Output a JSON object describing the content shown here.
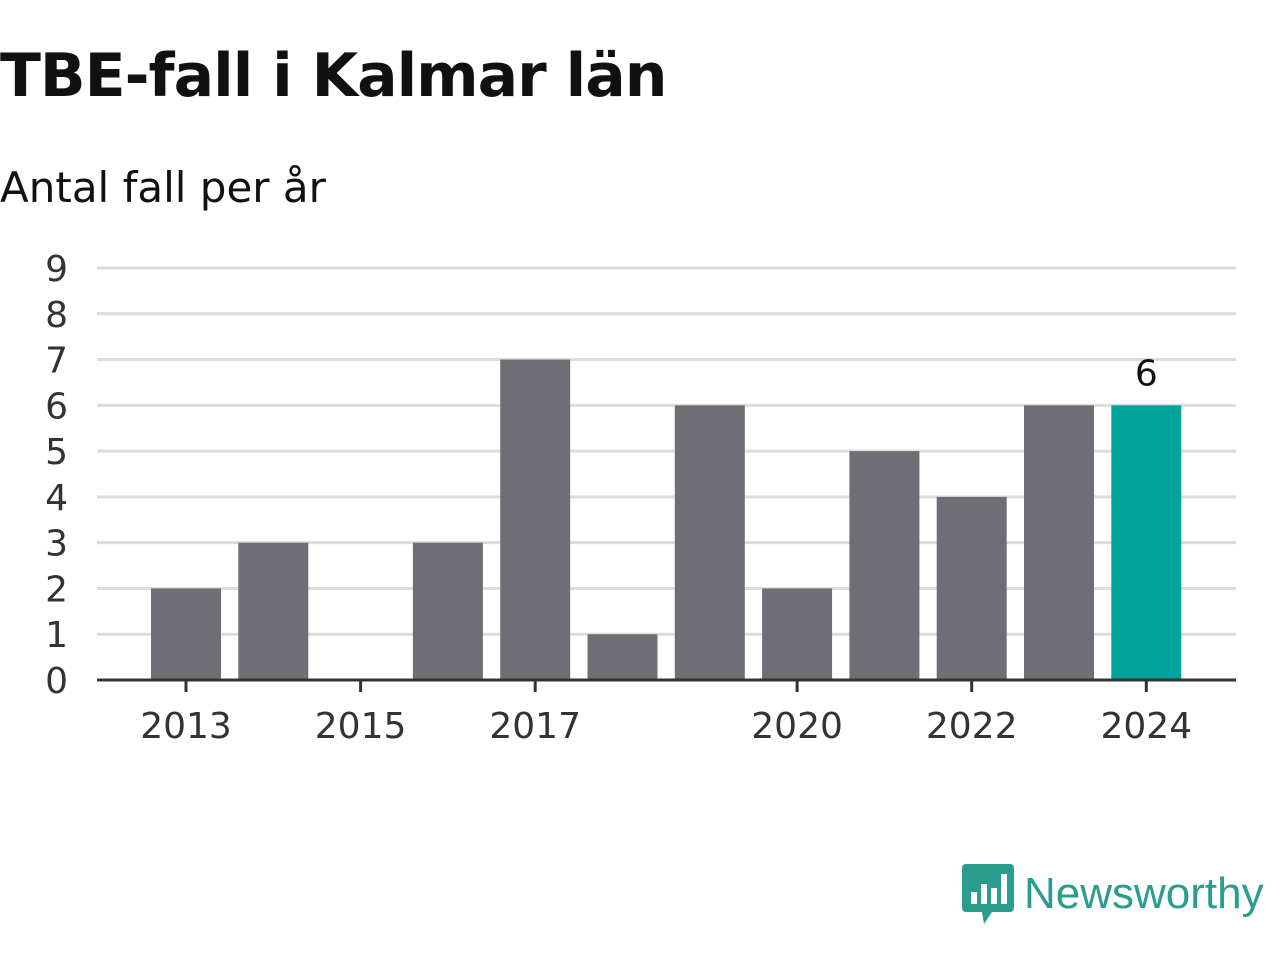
{
  "title": "TBE-fall i Kalmar län",
  "subtitle": "Antal fall per år",
  "logo": {
    "text": "Newsworthy",
    "icon": "newsworthy-chart-bubble-icon"
  },
  "colors": {
    "bar": "#6f6e74",
    "highlight": "#00a39a",
    "grid": "#dcdcdc",
    "axis": "#333333",
    "brand": "#2a9d8f"
  },
  "chart_data": {
    "type": "bar",
    "title": "TBE-fall i Kalmar län",
    "subtitle": "Antal fall per år",
    "xlabel": "",
    "ylabel": "",
    "categories": [
      "2013",
      "2014",
      "2015",
      "2016",
      "2017",
      "2018",
      "2019",
      "2020",
      "2021",
      "2022",
      "2023",
      "2024"
    ],
    "values": [
      2,
      3,
      0,
      3,
      7,
      1,
      6,
      2,
      5,
      4,
      6,
      6
    ],
    "highlight_index": 11,
    "ylim": [
      0,
      9
    ],
    "yticks": [
      "0",
      "1",
      "2",
      "3",
      "4",
      "5",
      "6",
      "7",
      "8",
      "9"
    ],
    "xtick_labels": [
      "2013",
      "2015",
      "2017",
      "2020",
      "2022",
      "2024"
    ],
    "data_labels": [
      {
        "category": "2024",
        "text": "6"
      }
    ],
    "grid": true,
    "legend": "none"
  }
}
